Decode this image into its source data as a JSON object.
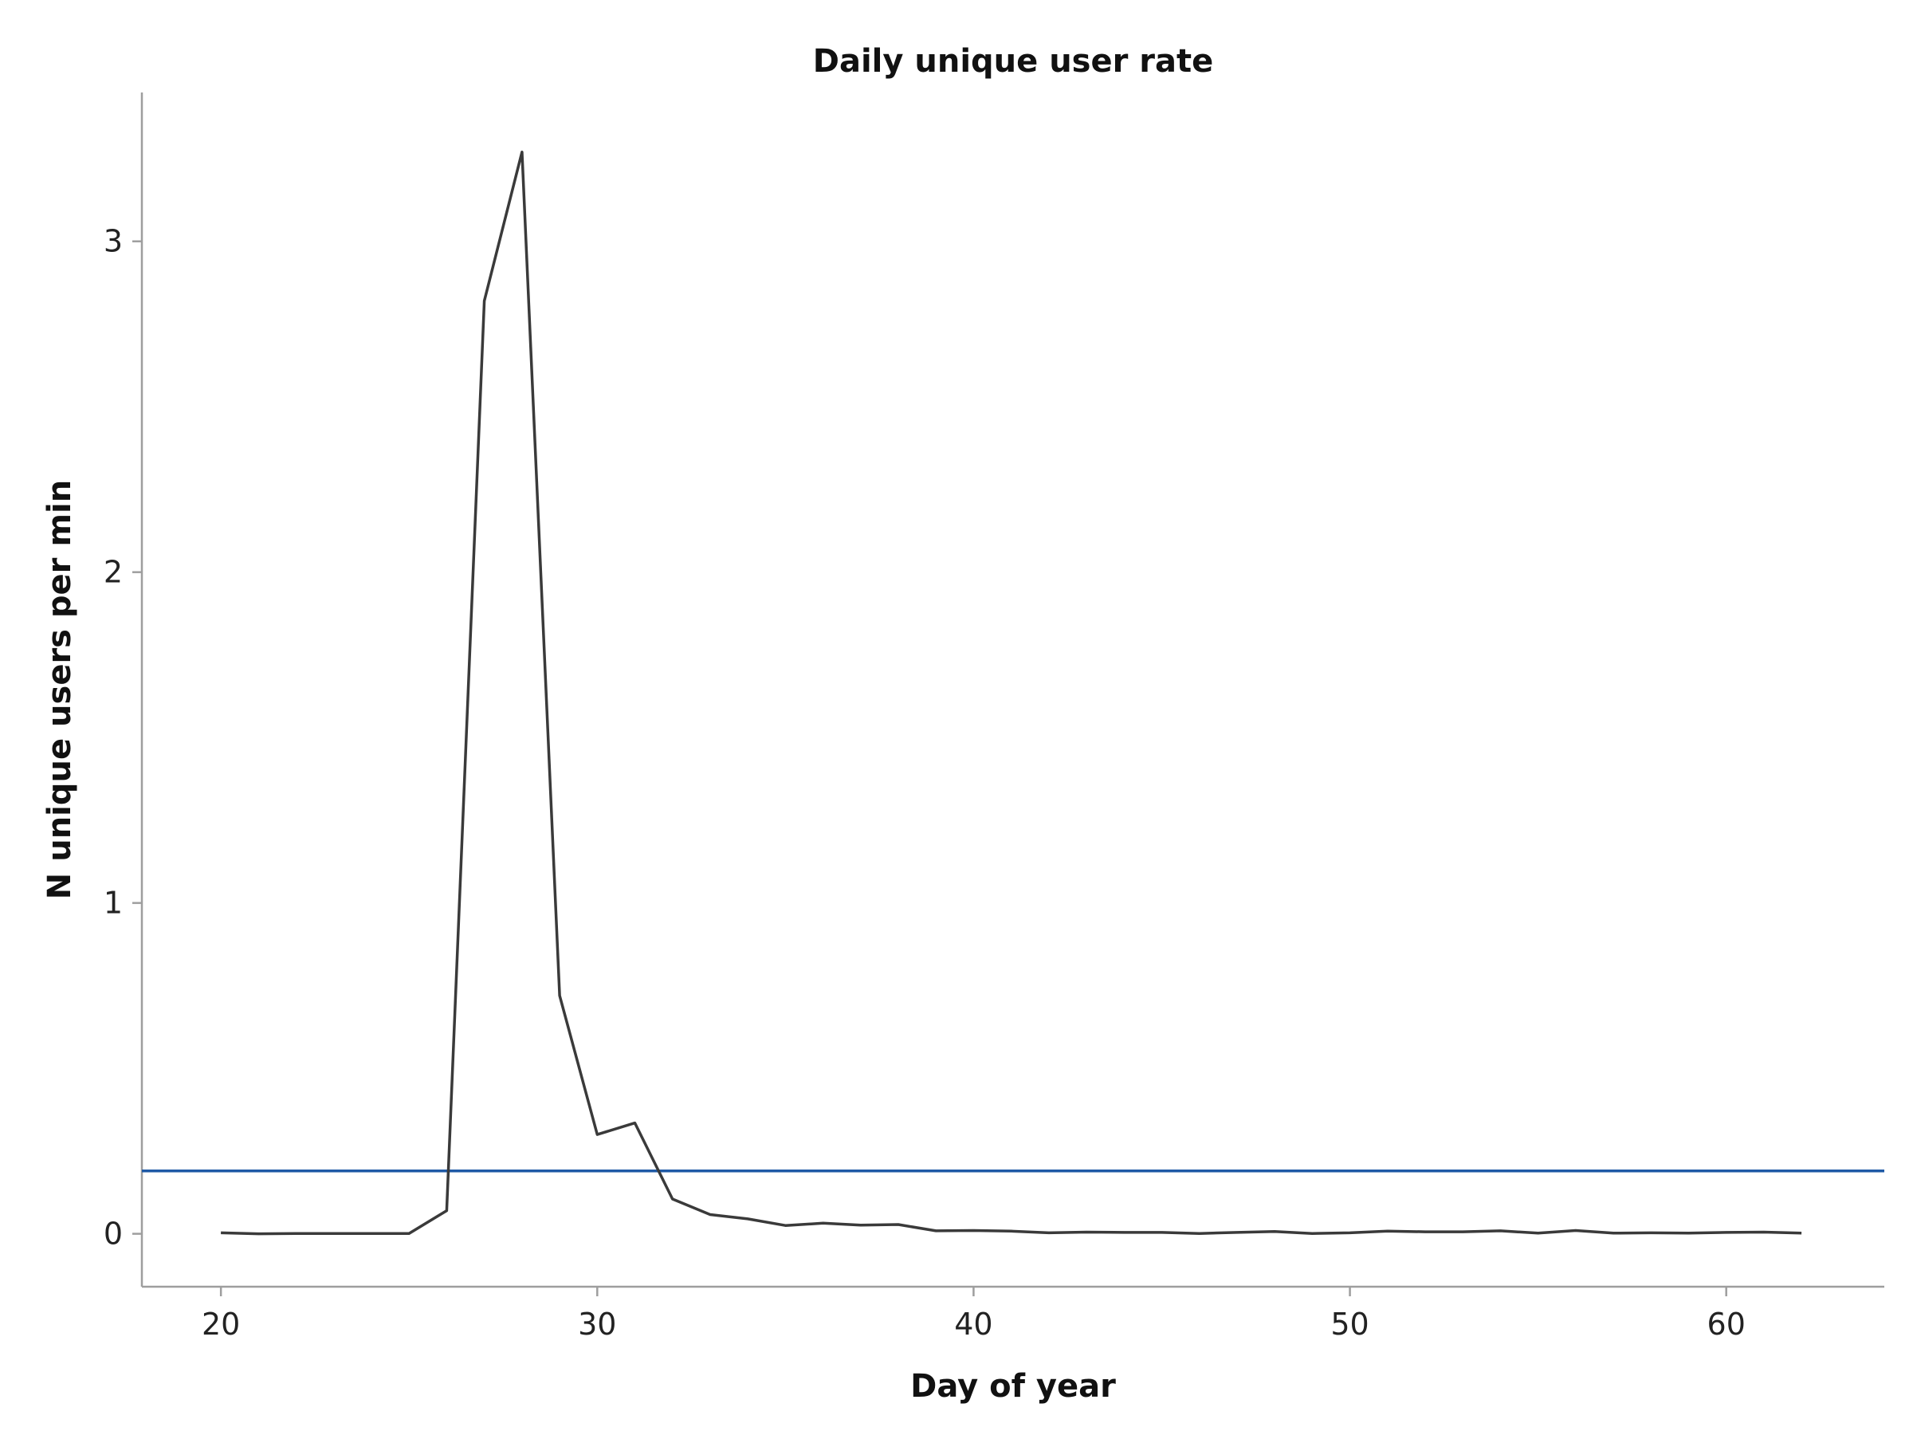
{
  "chart_data": {
    "type": "line",
    "title": "Daily unique user rate",
    "xlabel": "Day of year",
    "ylabel": "N unique users per min",
    "xlim": [
      17.9,
      64.2
    ],
    "ylim": [
      -0.16,
      3.45
    ],
    "xticks": [
      20,
      30,
      40,
      50,
      60
    ],
    "yticks": [
      0,
      1,
      2,
      3
    ],
    "grid": false,
    "legend": "none",
    "series": [
      {
        "color": "#3a3a3a",
        "x": [
          20,
          21,
          22,
          23,
          24,
          25,
          26,
          27,
          28,
          29,
          30,
          31,
          32,
          33,
          34,
          35,
          36,
          37,
          38,
          39,
          40,
          41,
          42,
          43,
          44,
          45,
          46,
          47,
          48,
          49,
          50,
          51,
          52,
          53,
          54,
          55,
          56,
          57,
          58,
          59,
          60,
          61,
          62
        ],
        "y": [
          0.003,
          0,
          0.001,
          0.001,
          0.001,
          0.001,
          0.07,
          2.82,
          3.27,
          0.72,
          0.3,
          0.335,
          0.105,
          0.058,
          0.045,
          0.025,
          0.032,
          0.026,
          0.028,
          0.009,
          0.01,
          0.008,
          0.003,
          0.005,
          0.004,
          0.004,
          0.001,
          0.004,
          0.007,
          0.001,
          0.003,
          0.008,
          0.006,
          0.006,
          0.009,
          0.002,
          0.01,
          0.002,
          0.003,
          0.002,
          0.004,
          0.005,
          0.002
        ]
      }
    ],
    "reference_line": {
      "y": 0.19,
      "color": "#1f5aa6"
    }
  }
}
